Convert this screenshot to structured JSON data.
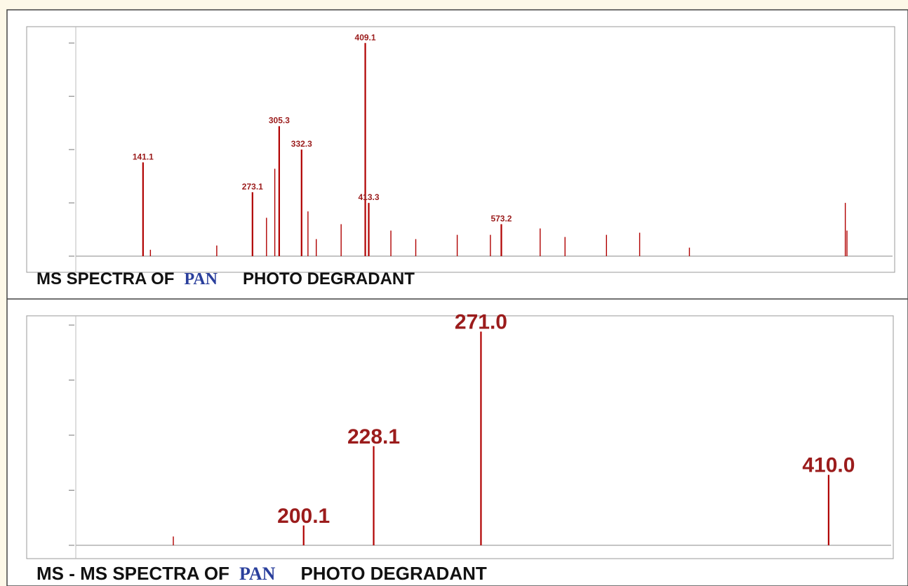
{
  "chart_data": [
    {
      "type": "bar",
      "caption": [
        "MS SPECTRA OF",
        "PAN",
        "PHOTO DEGRADANT"
      ],
      "x": [
        141.1,
        273.1,
        305.3,
        332.3,
        409.1,
        413.3,
        573.2,
        150,
        230,
        290,
        300,
        340,
        350,
        380,
        440,
        470,
        520,
        560,
        620,
        650,
        700,
        740,
        800,
        988,
        990
      ],
      "values": [
        44,
        30,
        61,
        50,
        100,
        25,
        15,
        3,
        5,
        18,
        41,
        21,
        8,
        15,
        12,
        8,
        10,
        10,
        13,
        9,
        10,
        11,
        4,
        25,
        12
      ],
      "peak_labels": [
        "141.1",
        "273.1",
        "305.3",
        "332.3",
        "409.1",
        "413.3",
        "573.2",
        null,
        null,
        null,
        null,
        null,
        null,
        null,
        null,
        null,
        null,
        null,
        null,
        null,
        null,
        null,
        null,
        null,
        null
      ],
      "color": "#b00000",
      "xlim": [
        60,
        1045
      ],
      "ylim": [
        0,
        107
      ],
      "yticks": [
        0,
        25,
        50,
        75,
        100
      ]
    },
    {
      "type": "bar",
      "caption": [
        "MS - MS SPECTRA OF",
        "PAN",
        "PHOTO DEGRADANT"
      ],
      "x": [
        148,
        200.1,
        228.1,
        271.0,
        410.0
      ],
      "values": [
        4,
        9,
        45,
        97,
        32
      ],
      "peak_labels": [
        null,
        "200.1",
        "228.1",
        "271.0",
        "410.0"
      ],
      "color": "#b00000",
      "xlim": [
        109,
        435
      ],
      "ylim": [
        0,
        101
      ],
      "yticks": [
        0,
        25,
        50,
        75,
        100
      ]
    }
  ]
}
